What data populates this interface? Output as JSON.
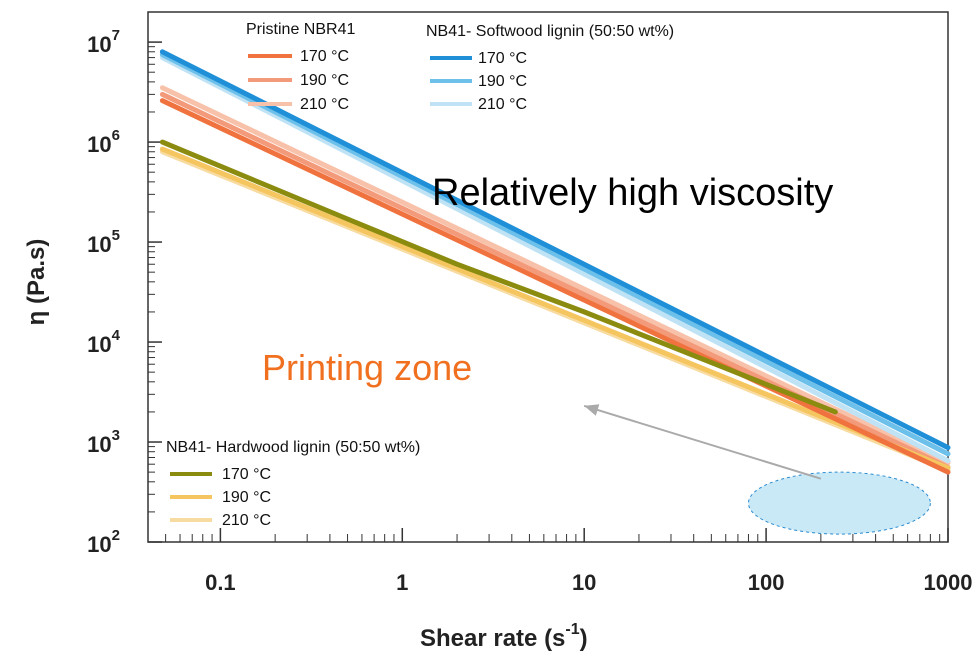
{
  "chart_data": {
    "type": "line",
    "title": "",
    "xlabel": "Shear rate (s",
    "xlabel_superscript": "-1",
    "xlabel_close": ")",
    "ylabel": "η (Pa.s)",
    "x_scale": "log",
    "y_scale": "log",
    "xlim": [
      0.04,
      1000
    ],
    "ylim": [
      100,
      20000000
    ],
    "x_ticks": [
      {
        "value": 0.1,
        "label": "0.1"
      },
      {
        "value": 1,
        "label": "1"
      },
      {
        "value": 10,
        "label": "10"
      },
      {
        "value": 100,
        "label": "100"
      },
      {
        "value": 1000,
        "label": "1000"
      }
    ],
    "y_ticks": [
      {
        "value": 100,
        "base": "10",
        "exp": "2"
      },
      {
        "value": 1000,
        "base": "10",
        "exp": "3"
      },
      {
        "value": 10000,
        "base": "10",
        "exp": "4"
      },
      {
        "value": 100000,
        "base": "10",
        "exp": "5"
      },
      {
        "value": 1000000,
        "base": "10",
        "exp": "6"
      },
      {
        "value": 10000000,
        "base": "10",
        "exp": "7"
      }
    ],
    "legend_groups": [
      {
        "title": "Pristine NBR41",
        "placement": "top-left"
      },
      {
        "title": "NB41- Softwood lignin (50:50 wt%)",
        "placement": "top-center"
      },
      {
        "title": "NB41- Hardwood lignin (50:50 wt%)",
        "placement": "bottom-left"
      }
    ],
    "series": [
      {
        "name": "170 °C",
        "group": 0,
        "color": "#f0733f",
        "x": [
          0.048,
          1000
        ],
        "y": [
          2600000,
          500
        ]
      },
      {
        "name": "190 °C",
        "group": 0,
        "color": "#f39a7a",
        "x": [
          0.048,
          1000
        ],
        "y": [
          3000000,
          560
        ]
      },
      {
        "name": "210 °C",
        "group": 0,
        "color": "#f8c2aa",
        "x": [
          0.048,
          1000
        ],
        "y": [
          3500000,
          620
        ]
      },
      {
        "name": "170 °C",
        "group": 1,
        "color": "#1f8fd8",
        "x": [
          0.048,
          1000
        ],
        "y": [
          8000000,
          880
        ]
      },
      {
        "name": "190 °C",
        "group": 1,
        "color": "#6cc0ea",
        "x": [
          0.048,
          1000
        ],
        "y": [
          7500000,
          760
        ]
      },
      {
        "name": "210 °C",
        "group": 1,
        "color": "#bfe3f5",
        "x": [
          0.048,
          1000
        ],
        "y": [
          7000000,
          650
        ]
      },
      {
        "name": "170 °C",
        "group": 2,
        "color": "#8b8b10",
        "x": [
          0.048,
          0.5,
          2,
          10,
          240
        ],
        "y": [
          1000000,
          170000,
          60000,
          20000,
          2000
        ]
      },
      {
        "name": "190 °C",
        "group": 2,
        "color": "#f5c660",
        "x": [
          0.048,
          1000
        ],
        "y": [
          850000,
          550
        ]
      },
      {
        "name": "210 °C",
        "group": 2,
        "color": "#f8dba0",
        "x": [
          0.048,
          1000
        ],
        "y": [
          800000,
          520
        ]
      }
    ],
    "annotations": [
      {
        "text": "Relatively high viscosity",
        "color": "#000000"
      },
      {
        "text": "Printing zone",
        "color": "#f07020"
      }
    ],
    "printing_zone": {
      "x_center": 250,
      "y_center": 240,
      "x_range": [
        80,
        800
      ],
      "y_range": [
        120,
        500
      ],
      "fill": "#c9e9f7",
      "stroke": "#2a8bd0"
    },
    "arrow": {
      "from": {
        "x": 200,
        "y": 430
      },
      "to": {
        "x": 10,
        "y": 2300
      },
      "color": "#aaaaaa"
    },
    "grid": false
  }
}
